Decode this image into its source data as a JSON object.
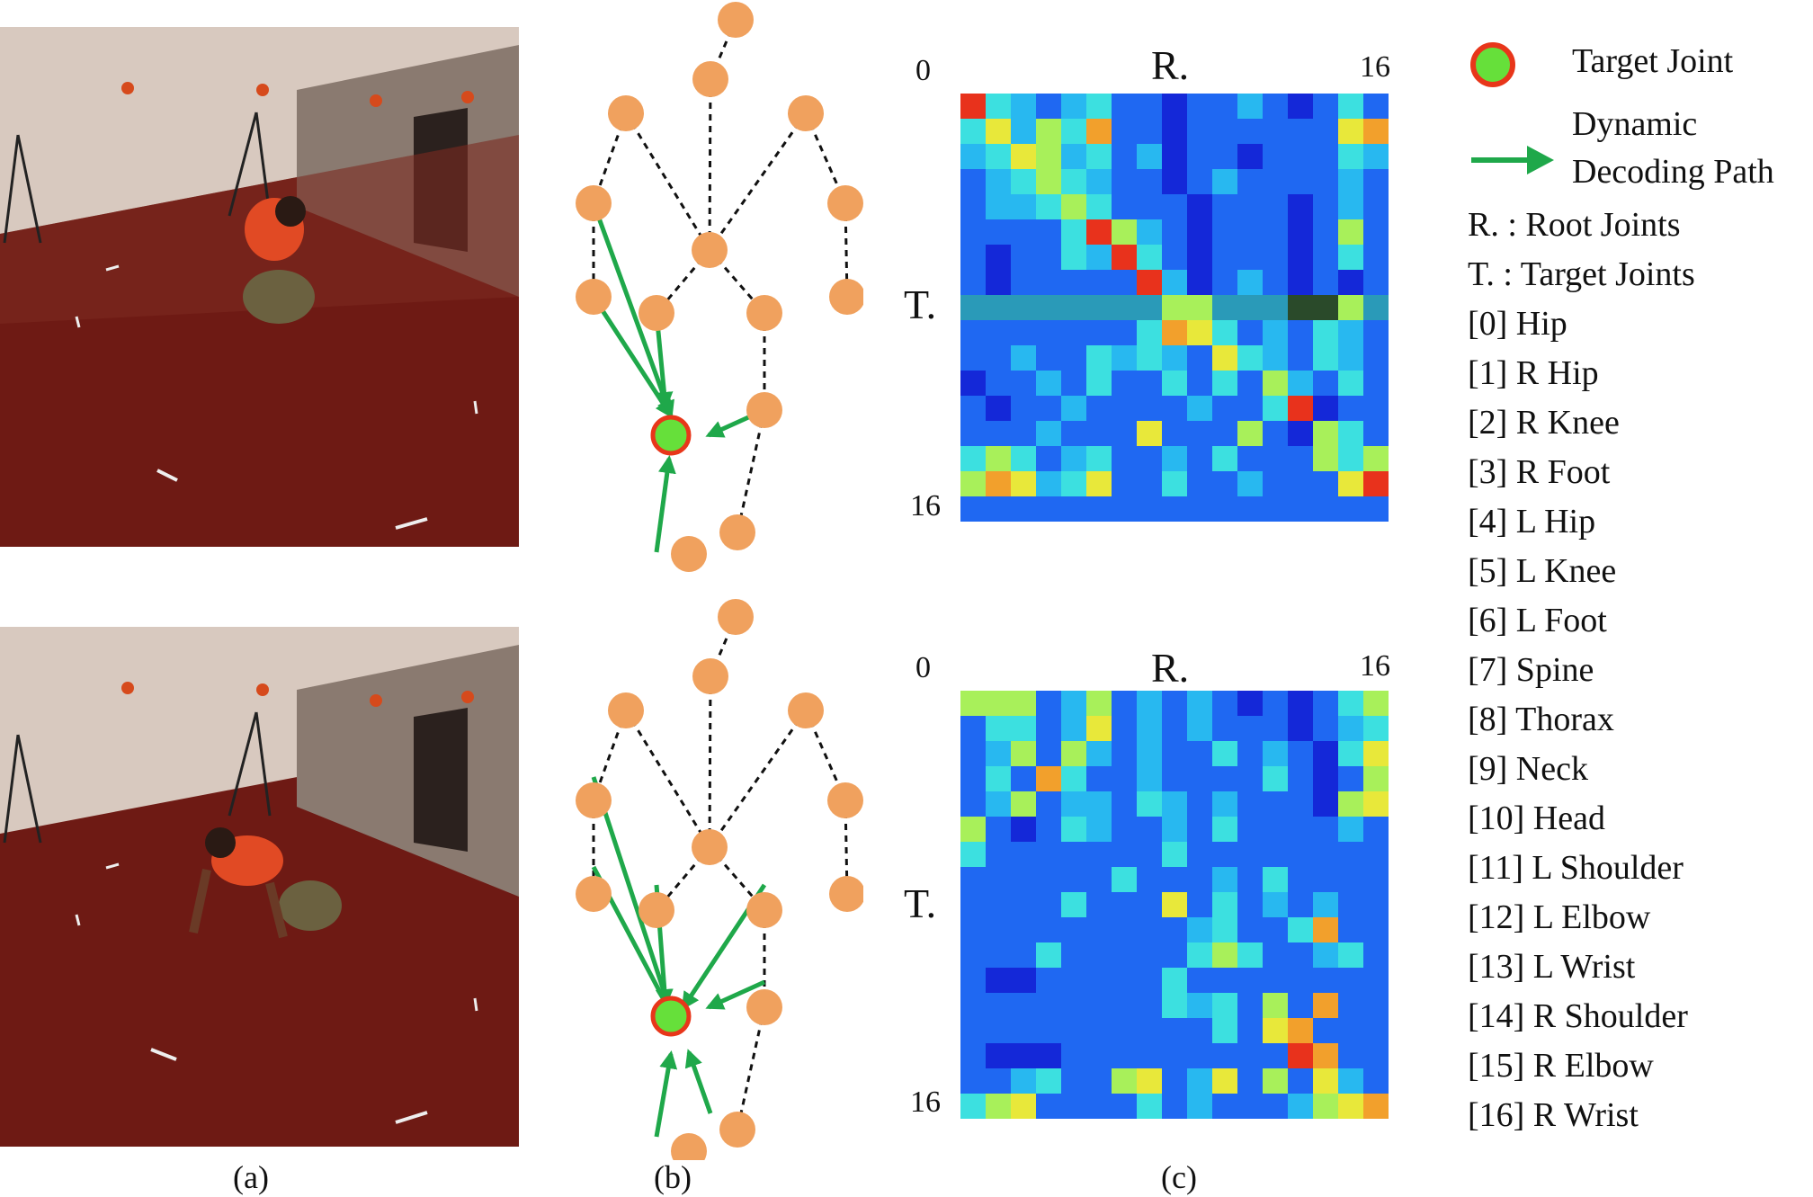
{
  "panels": {
    "a": {
      "caption": "(a)"
    },
    "b": {
      "caption": "(b)"
    },
    "c": {
      "caption": "(c)"
    }
  },
  "heatmap": {
    "root_axis_label": "R.",
    "target_axis_label": "T.",
    "start_index": "0",
    "end_index": "16"
  },
  "legend": {
    "target_joint": "Target Joint",
    "decoding_path_line1": "Dynamic",
    "decoding_path_line2": "Decoding Path",
    "root_def": "R. : Root Joints",
    "target_def": "T. : Target Joints",
    "joints": [
      "[0] Hip",
      "[1] R Hip",
      "[2] R Knee",
      "[3] R Foot",
      "[4] L Hip",
      "[5] L Knee",
      "[6] L Foot",
      "[7] Spine",
      "[8] Thorax",
      "[9] Neck",
      "[10] Head",
      "[11] L Shoulder",
      "[12] L Elbow",
      "[13] L Wrist",
      "[14] R Shoulder",
      "[15] R Elbow",
      "[16] R Wrist"
    ]
  },
  "colors": {
    "node_fill": "#f0a15e",
    "target_fill": "#66e03a",
    "target_stroke": "#e8361a",
    "arrow": "#1fa84a",
    "carpet": "#6e1a14"
  }
}
